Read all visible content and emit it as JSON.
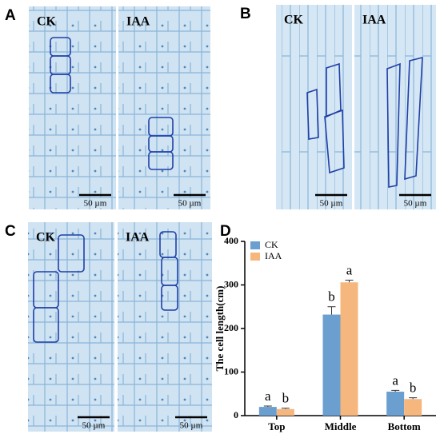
{
  "panels": [
    {
      "label": "A",
      "images": [
        {
          "label": "CK",
          "scale": "50 µm"
        },
        {
          "label": "IAA",
          "scale": "50 µm"
        }
      ]
    },
    {
      "label": "B",
      "images": [
        {
          "label": "CK",
          "scale": "50 µm"
        },
        {
          "label": "IAA",
          "scale": "50 µm"
        }
      ]
    },
    {
      "label": "C",
      "images": [
        {
          "label": "CK",
          "scale": "50 µm"
        },
        {
          "label": "IAA",
          "scale": "50 µm"
        }
      ]
    }
  ],
  "chart_data": {
    "type": "bar",
    "panel_label": "D",
    "y_label": "The cell length(cm)",
    "categories": [
      "Top",
      "Middle",
      "Bottom"
    ],
    "series": [
      {
        "name": "CK",
        "color": "#6a9fd0",
        "values": [
          20,
          232,
          55
        ],
        "errors": [
          2,
          18,
          3
        ],
        "letters": [
          "a",
          "b",
          "a"
        ]
      },
      {
        "name": "IAA",
        "color": "#f6b77e",
        "values": [
          15,
          306,
          38
        ],
        "errors": [
          2,
          5,
          3
        ],
        "letters": [
          "b",
          "a",
          "b"
        ]
      }
    ],
    "ylim": [
      0,
      400
    ],
    "yticks": [
      0,
      100,
      200,
      300,
      400
    ],
    "legend": "upper-left"
  }
}
